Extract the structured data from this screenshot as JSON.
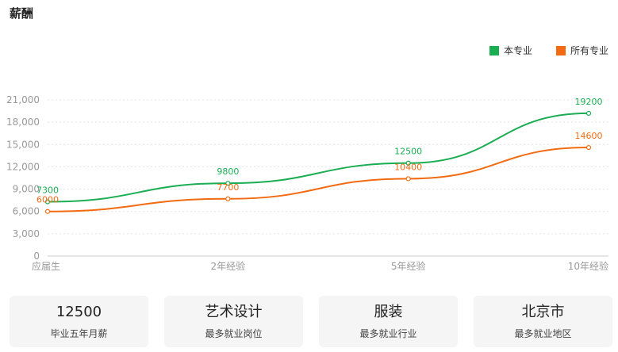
{
  "section_title": "薪酬",
  "colors": {
    "this_major": "#1aad52",
    "all_majors": "#f26b12",
    "grid": "#e4e4e4",
    "axis_text": "#999999"
  },
  "chart_data": {
    "type": "line",
    "categories": [
      "应届生",
      "2年经验",
      "5年经验",
      "10年经验"
    ],
    "series": [
      {
        "name": "本专业",
        "values": [
          7300,
          9800,
          12500,
          19200
        ]
      },
      {
        "name": "所有专业",
        "values": [
          6000,
          7700,
          10400,
          14600
        ]
      }
    ],
    "yticks": [
      "0",
      "3,000",
      "6,000",
      "9,000",
      "12,000",
      "15,000",
      "18,000",
      "21,000"
    ],
    "ylim": [
      0,
      21000
    ],
    "grid": true,
    "legend": "top-right"
  },
  "cards": [
    {
      "value": "12500",
      "label": "毕业五年月薪"
    },
    {
      "value": "艺术设计",
      "label": "最多就业岗位"
    },
    {
      "value": "服装",
      "label": "最多就业行业"
    },
    {
      "value": "北京市",
      "label": "最多就业地区"
    }
  ]
}
